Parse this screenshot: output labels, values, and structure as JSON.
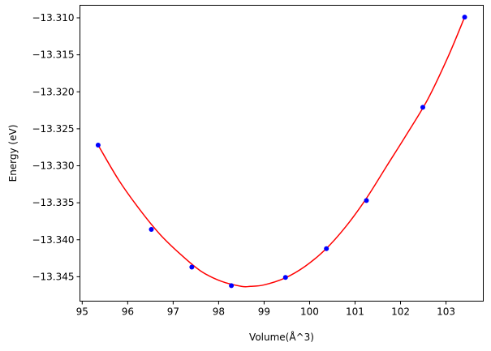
{
  "chart_data": {
    "type": "scatter",
    "xlabel": "Volume(Å^3)",
    "ylabel": "Energy (eV)",
    "xlim": [
      94.95,
      103.82
    ],
    "ylim": [
      -13.3483,
      -13.3083
    ],
    "grid": false,
    "xticks": [
      95,
      96,
      97,
      98,
      99,
      100,
      101,
      102,
      103
    ],
    "xtick_labels": [
      "95",
      "96",
      "97",
      "98",
      "99",
      "100",
      "101",
      "102",
      "103"
    ],
    "yticks": [
      -13.345,
      -13.34,
      -13.335,
      -13.33,
      -13.325,
      -13.32,
      -13.315,
      -13.31
    ],
    "ytick_labels": [
      "−13.345",
      "−13.340",
      "−13.335",
      "−13.330",
      "−13.325",
      "−13.320",
      "−13.315",
      "−13.310"
    ],
    "series": [
      {
        "kind": "points",
        "color": "#0000ff",
        "x": [
          95.35,
          96.52,
          97.41,
          98.28,
          99.47,
          100.37,
          101.25,
          102.49,
          103.41
        ],
        "y": [
          -13.3272,
          -13.3386,
          -13.3437,
          -13.3462,
          -13.3451,
          -13.3412,
          -13.3347,
          -13.3221,
          -13.3099
        ]
      },
      {
        "kind": "fit-curve",
        "color": "#ff0000",
        "x": [
          95.35,
          95.8,
          96.25,
          96.7,
          97.15,
          97.6,
          98.05,
          98.5,
          98.7,
          99.0,
          99.45,
          99.9,
          100.35,
          100.8,
          101.25,
          101.7,
          102.15,
          102.6,
          103.05,
          103.41
        ],
        "y": [
          -13.3272,
          -13.3319,
          -13.3358,
          -13.3392,
          -13.3419,
          -13.3442,
          -13.3456,
          -13.3463,
          -13.3463,
          -13.3461,
          -13.3452,
          -13.3436,
          -13.3413,
          -13.3382,
          -13.3344,
          -13.33,
          -13.3256,
          -13.321,
          -13.3152,
          -13.3099
        ]
      }
    ]
  }
}
